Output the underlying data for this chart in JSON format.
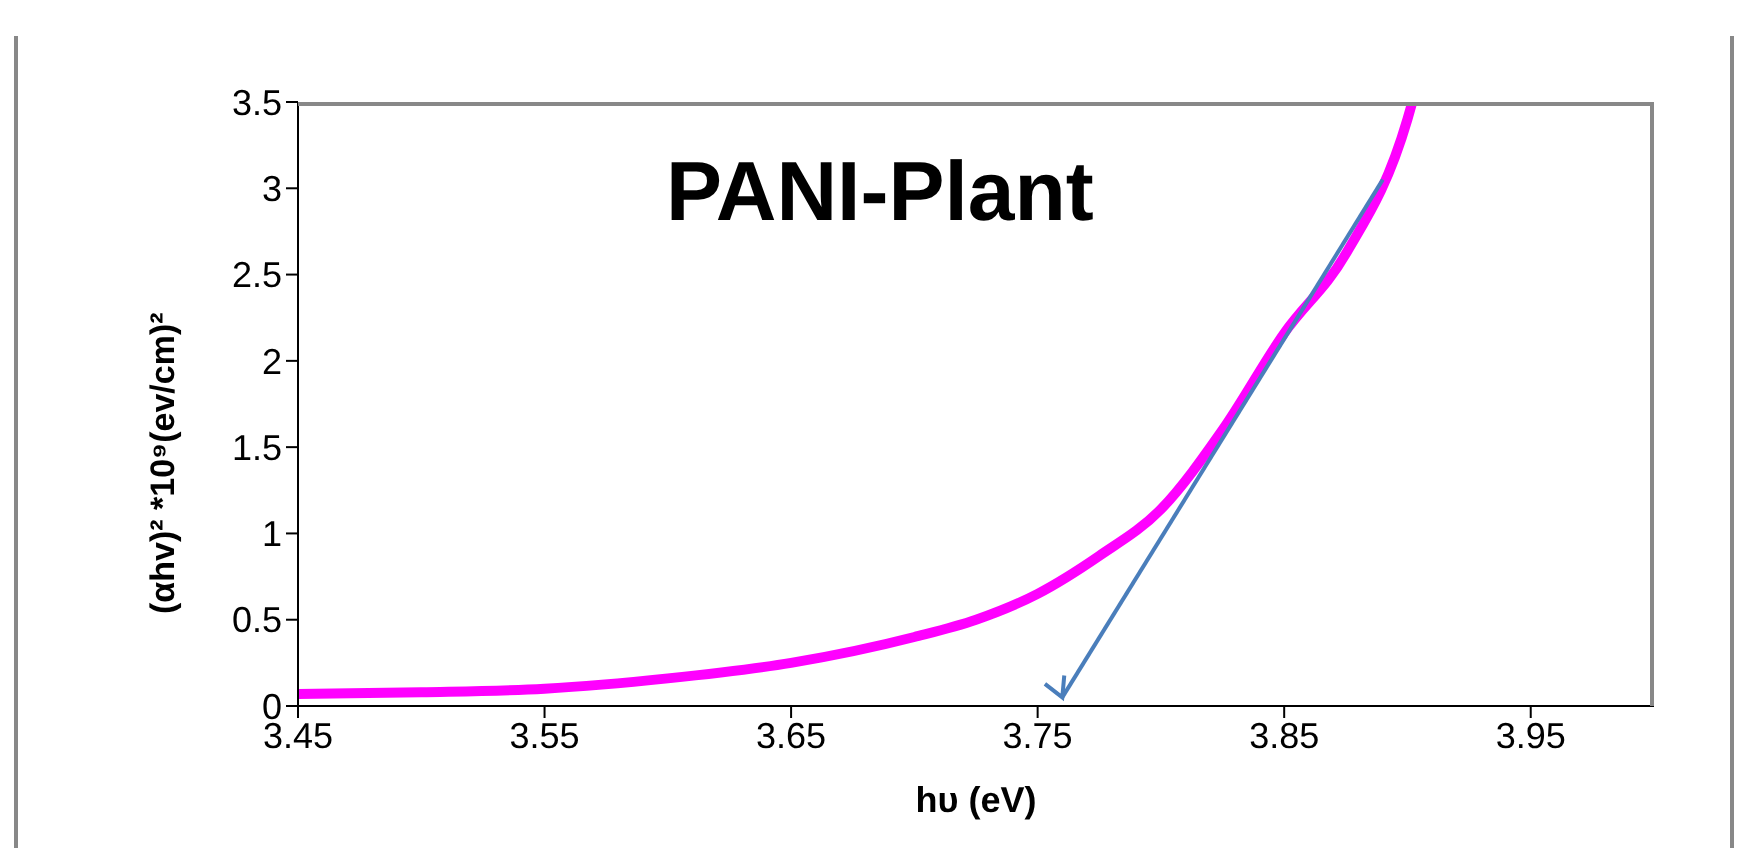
{
  "chart_data": {
    "type": "line",
    "title": "PANI-Plant",
    "xlabel": "hυ (eV)",
    "ylabel": "(αhv)²  *10⁹(ev/cm)²",
    "series": [
      {
        "color": "#ff00ff",
        "x": [
          3.45,
          3.5,
          3.55,
          3.6,
          3.65,
          3.7,
          3.725,
          3.75,
          3.775,
          3.8,
          3.825,
          3.85,
          3.875,
          3.9,
          3.902
        ],
        "values": [
          0.07,
          0.08,
          0.1,
          0.16,
          0.25,
          0.4,
          0.5,
          0.65,
          0.87,
          1.14,
          1.6,
          2.16,
          2.62,
          3.4,
          3.5
        ]
      },
      {
        "type": "line",
        "color": "#4a7ebb",
        "x": [
          3.89,
          3.76
        ],
        "values": [
          3.05,
          0.05
        ]
      }
    ],
    "xlim": [
      3.45,
      4.0
    ],
    "xticks": [
      3.45,
      3.55,
      3.65,
      3.75,
      3.85,
      3.95
    ],
    "ylim": [
      0,
      3.5
    ],
    "yticks": [
      0,
      0.5,
      1,
      1.5,
      2,
      2.5,
      3,
      3.5
    ],
    "marker": "none"
  }
}
